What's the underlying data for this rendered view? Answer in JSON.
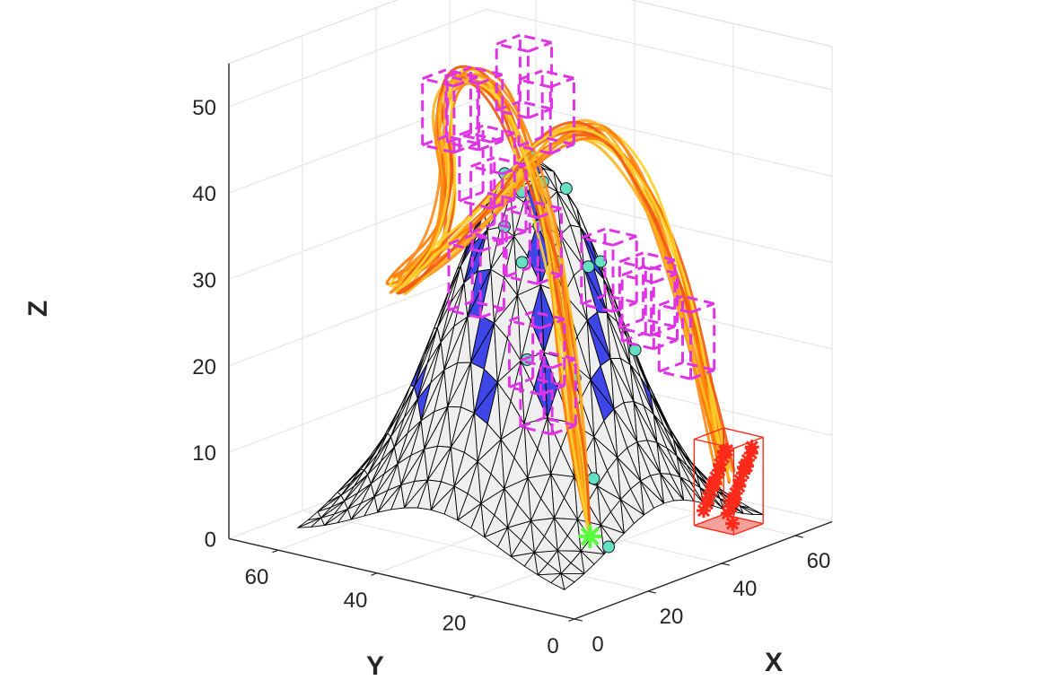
{
  "chart_data": {
    "type": "surface3d",
    "title": "",
    "xlabel": "X",
    "ylabel": "Y",
    "zlabel": "Z",
    "xlim": [
      0,
      70
    ],
    "ylim": [
      0,
      70
    ],
    "zlim": [
      0,
      55
    ],
    "xticks": [
      "0",
      "20",
      "40",
      "60"
    ],
    "yticks": [
      "0",
      "20",
      "40",
      "60"
    ],
    "zticks": [
      "0",
      "10",
      "20",
      "30",
      "40",
      "50"
    ],
    "grid": true,
    "surface": {
      "description_free": true,
      "peak": [
        35,
        35,
        43
      ],
      "sigma": 14,
      "face_color": "#efefef",
      "edge_color": "#000000",
      "highlight_color": "#3f46e8"
    },
    "start_point": {
      "x": 23,
      "y": 14,
      "z": 4,
      "color": "#55ff3a"
    },
    "goal_box": {
      "x": [
        54,
        62
      ],
      "y": [
        8,
        16
      ],
      "z": [
        0,
        10
      ],
      "color": "#ff2a1a"
    },
    "obstacle_boxes": {
      "color": "#e033e6",
      "centers": [
        [
          21,
          21,
          20
        ],
        [
          26,
          27,
          23
        ],
        [
          48,
          44,
          30
        ],
        [
          46,
          52,
          38
        ],
        [
          44,
          58,
          44
        ],
        [
          40,
          50,
          46
        ],
        [
          44,
          43,
          50
        ],
        [
          42,
          37,
          47
        ],
        [
          33,
          40,
          38
        ],
        [
          27,
          40,
          30
        ],
        [
          55,
          34,
          27
        ],
        [
          58,
          28,
          23
        ],
        [
          60,
          22,
          20
        ],
        [
          56,
          27,
          25
        ]
      ]
    },
    "trajectory": {
      "colors": [
        "#ff8c1a",
        "#ffb319",
        "#f05a14",
        "#ffd22a",
        "#ff7a00"
      ],
      "count": 14
    }
  }
}
